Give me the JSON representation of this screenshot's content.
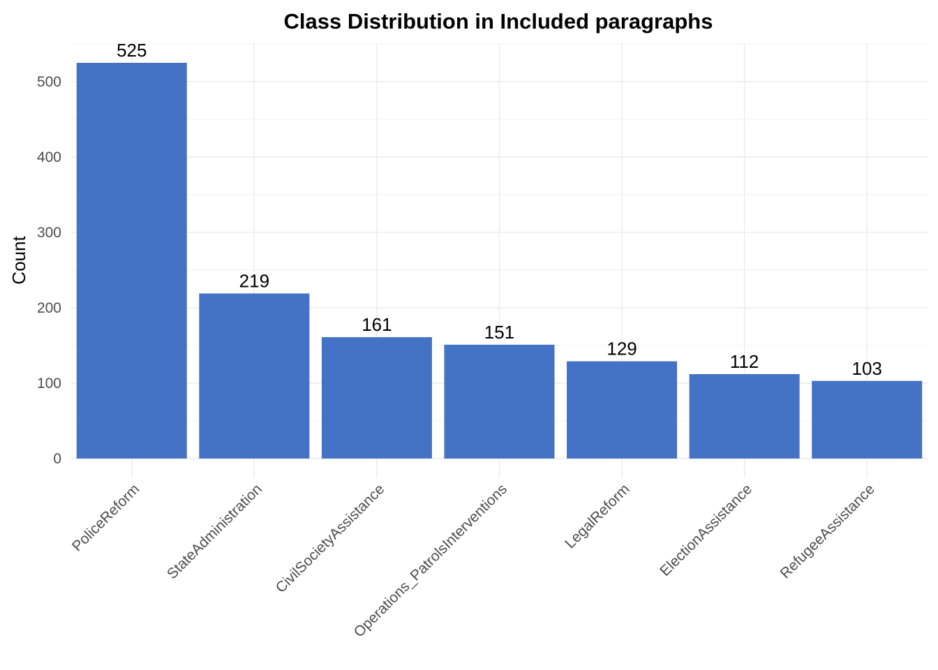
{
  "chart_data": {
    "type": "bar",
    "title": "Class Distribution in Included paragraphs",
    "xlabel": "",
    "ylabel": "Count",
    "categories": [
      "PoliceReform",
      "StateAdministration",
      "CivilSocietyAssistance",
      "Operations_PatrolsInterventions",
      "LegalReform",
      "ElectionAssistance",
      "RefugeeAssistance"
    ],
    "values": [
      525,
      219,
      161,
      151,
      129,
      112,
      103
    ],
    "data_labels": [
      "525",
      "219",
      "161",
      "151",
      "129",
      "112",
      "103"
    ],
    "ylim": [
      0,
      550
    ],
    "yticks": [
      0,
      100,
      200,
      300,
      400,
      500
    ],
    "ytick_labels": [
      "0",
      "100",
      "200",
      "300",
      "400",
      "500"
    ],
    "grid": true,
    "legend": "none",
    "bar_color": "#4472C4"
  }
}
